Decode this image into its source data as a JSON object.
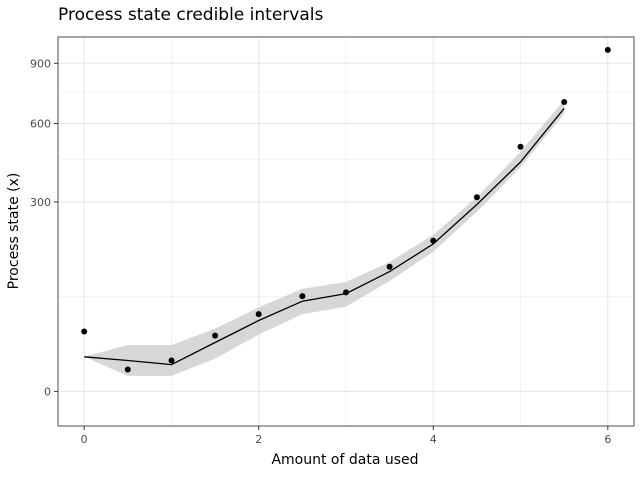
{
  "chart_data": {
    "type": "line",
    "title": "Process state credible intervals",
    "xlabel": "Amount of data used",
    "ylabel": "Process state (x)",
    "xlim": [
      -0.3,
      6.3
    ],
    "x_ticks": [
      0,
      2,
      4,
      6
    ],
    "x_minor": [
      1,
      3,
      5
    ],
    "y_scale": "sqrt",
    "ylim": [
      -10,
      1050
    ],
    "y_ticks": [
      0,
      300,
      600,
      900
    ],
    "y_minor": [
      75,
      450,
      750
    ],
    "grid": true,
    "series": [
      {
        "kind": "ribbon",
        "x": [
          0,
          0.5,
          1,
          1.5,
          2,
          2.5,
          3,
          3.5,
          4,
          4.5,
          5,
          5.5
        ],
        "lower": [
          10,
          2,
          2,
          9,
          27,
          50,
          60,
          102,
          163,
          270,
          420,
          645
        ],
        "upper": [
          10,
          18,
          18,
          33,
          59,
          88,
          100,
          140,
          205,
          315,
          480,
          710
        ]
      },
      {
        "kind": "line",
        "x": [
          0,
          0.5,
          1,
          1.5,
          2,
          2.5,
          3,
          3.5,
          4,
          4.5,
          5,
          5.5
        ],
        "y": [
          10,
          8,
          6,
          20,
          42,
          68,
          80,
          120,
          182,
          292,
          440,
          670
        ]
      },
      {
        "kind": "points",
        "x": [
          0,
          0.5,
          1,
          1.5,
          2,
          2.5,
          3,
          3.5,
          4,
          4.5,
          5,
          5.5,
          6
        ],
        "y": [
          30,
          4,
          8,
          26,
          50,
          76,
          82,
          130,
          190,
          315,
          500,
          700,
          975
        ]
      }
    ]
  }
}
